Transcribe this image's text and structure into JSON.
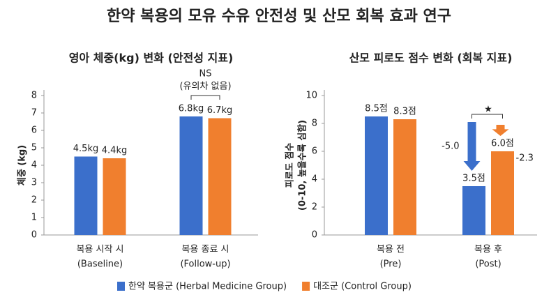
{
  "title": "한약 복용의 모유 수유 안전성 및 산모 회복 효과 연구",
  "chart_data": [
    {
      "type": "bar",
      "title": "영아 체중(kg) 변화 (안전성 지표)",
      "ylabel": "체중 (kg)",
      "categories": [
        "복용 시작 시",
        "복용 종료 시"
      ],
      "category_sublabels": [
        "(Baseline)",
        "(Follow-up)"
      ],
      "series": [
        {
          "name": "한약 복용군 (Herbal Medicine Group)",
          "color": "#3b6fcb",
          "values": [
            4.5,
            6.8
          ],
          "value_labels": [
            "4.5kg",
            "6.8kg"
          ]
        },
        {
          "name": "대조군 (Control Group)",
          "color": "#f07f2e",
          "values": [
            4.4,
            6.7
          ],
          "value_labels": [
            "4.4kg",
            "6.7kg"
          ]
        }
      ],
      "ylim": [
        0,
        8
      ],
      "yticks": [
        0,
        1,
        2,
        3,
        4,
        5,
        6,
        7,
        8
      ],
      "grid": false,
      "annotation": "NS",
      "annotation_note": "(유의차 없음)"
    },
    {
      "type": "bar",
      "title": "산모 피로도 점수 변화 (회복 지표)",
      "ylabel": [
        "피로도 점수",
        "(0-10, 높을수록 심함)"
      ],
      "categories": [
        "복용 전",
        "복용 후"
      ],
      "category_sublabels": [
        "(Pre)",
        "(Post)"
      ],
      "series": [
        {
          "name": "한약 복용군 (Herbal Medicine Group)",
          "color": "#3b6fcb",
          "values": [
            8.5,
            3.5
          ],
          "value_labels": [
            "8.5점",
            "3.5점"
          ],
          "change": {
            "value": -5,
            "label": "-5.0"
          }
        },
        {
          "name": "대조군 (Control Group)",
          "color": "#f07f2e",
          "values": [
            8.3,
            6.0
          ],
          "value_labels": [
            "8.3점",
            "6.0점"
          ],
          "change": {
            "value": -2.3,
            "label": "-2.3"
          }
        }
      ],
      "ylim": [
        0,
        10
      ],
      "yticks": [
        0,
        2,
        4,
        6,
        8,
        10
      ],
      "grid": false,
      "annotation": "★"
    }
  ]
}
